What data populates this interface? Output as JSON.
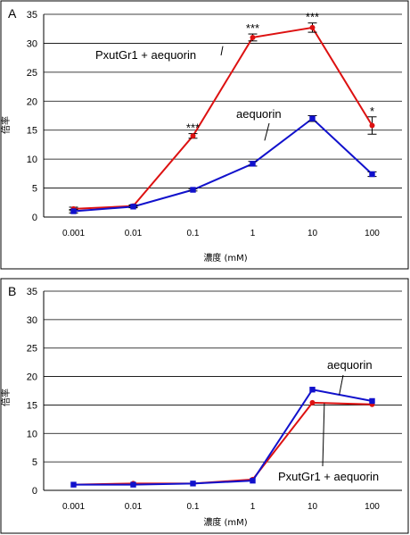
{
  "chart_data": [
    {
      "type": "line",
      "panel": "A",
      "xscale": "log",
      "ylabel": "倍率",
      "xlabel": "濃度 (mM)",
      "x": [
        0.001,
        0.01,
        0.1,
        1,
        10,
        100
      ],
      "x_tick_labels": [
        "0.001",
        "0.01",
        "0.1",
        "1",
        "10",
        "100"
      ],
      "ylim": [
        0,
        35
      ],
      "y_ticks": [
        0,
        5,
        10,
        15,
        20,
        25,
        30,
        35
      ],
      "grid": true,
      "series": [
        {
          "name": "PxutGr1 + aequorin",
          "color": "#dd1111",
          "marker": "circle",
          "values": [
            1.4,
            1.9,
            14.0,
            31.0,
            32.7,
            15.8
          ],
          "error": [
            0.3,
            0.2,
            0.4,
            0.6,
            0.8,
            1.5
          ],
          "annotations": [
            "",
            "",
            "***",
            "***",
            "***",
            "*"
          ]
        },
        {
          "name": "aequorin",
          "color": "#1111cc",
          "marker": "square",
          "values": [
            1.0,
            1.8,
            4.7,
            9.2,
            17.0,
            7.4
          ],
          "error": [
            0.3,
            0.2,
            0.2,
            0.4,
            0.5,
            0.4
          ],
          "annotations": [
            "",
            "",
            "",
            "",
            "",
            ""
          ]
        }
      ]
    },
    {
      "type": "line",
      "panel": "B",
      "xscale": "log",
      "ylabel": "倍率",
      "xlabel": "濃度 (mM)",
      "x": [
        0.001,
        0.01,
        0.1,
        1,
        10,
        100
      ],
      "x_tick_labels": [
        "0.001",
        "0.01",
        "0.1",
        "1",
        "10",
        "100"
      ],
      "ylim": [
        0,
        35
      ],
      "y_ticks": [
        0,
        5,
        10,
        15,
        20,
        25,
        30,
        35
      ],
      "grid": true,
      "series": [
        {
          "name": "PxutGr1 + aequorin",
          "color": "#dd1111",
          "marker": "circle",
          "values": [
            1.0,
            1.2,
            1.2,
            1.9,
            15.4,
            15.1
          ]
        },
        {
          "name": "aequorin",
          "color": "#1111cc",
          "marker": "square",
          "values": [
            1.0,
            1.0,
            1.2,
            1.7,
            17.7,
            15.7
          ]
        }
      ]
    }
  ]
}
